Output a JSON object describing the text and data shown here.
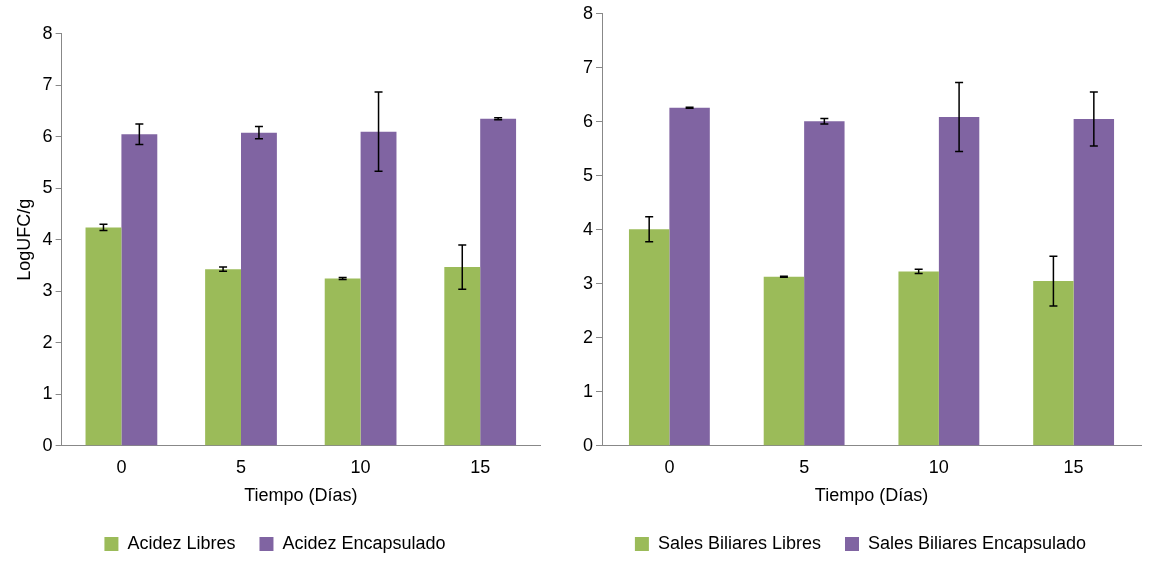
{
  "chart_data": [
    {
      "type": "bar",
      "xlabel": "Tiempo (Días)",
      "ylabel": "LogUFC/g",
      "categories": [
        "0",
        "5",
        "10",
        "15"
      ],
      "series": [
        {
          "name": "Acidez Libres",
          "color": "#9bbb59",
          "values": [
            4.24,
            3.43,
            3.25,
            3.47
          ],
          "errors": [
            0.06,
            0.04,
            0.02,
            0.43
          ]
        },
        {
          "name": "Acidez Encapsulado",
          "color": "#8064a2",
          "values": [
            6.05,
            6.08,
            6.1,
            6.35
          ],
          "errors": [
            0.2,
            0.12,
            0.77,
            0.02
          ]
        }
      ],
      "ylim": [
        0,
        8
      ],
      "yticks": [
        0,
        1,
        2,
        3,
        4,
        5,
        6,
        7,
        8
      ],
      "grid": false,
      "legend": "bottom"
    },
    {
      "type": "bar",
      "xlabel": "Tiempo (Días)",
      "categories": [
        "0",
        "5",
        "10",
        "15"
      ],
      "series": [
        {
          "name": "Sales Biliares Libres",
          "color": "#9bbb59",
          "values": [
            4.01,
            3.13,
            3.23,
            3.05
          ],
          "errors": [
            0.23,
            0.01,
            0.04,
            0.46
          ]
        },
        {
          "name": "Sales Biliares Encapsulado",
          "color": "#8064a2",
          "values": [
            6.26,
            6.01,
            6.09,
            6.05
          ],
          "errors": [
            0.01,
            0.05,
            0.64,
            0.5
          ]
        }
      ],
      "ylim": [
        0,
        8
      ],
      "yticks": [
        0,
        1,
        2,
        3,
        4,
        5,
        6,
        7,
        8
      ],
      "grid": false,
      "legend": "bottom"
    }
  ]
}
